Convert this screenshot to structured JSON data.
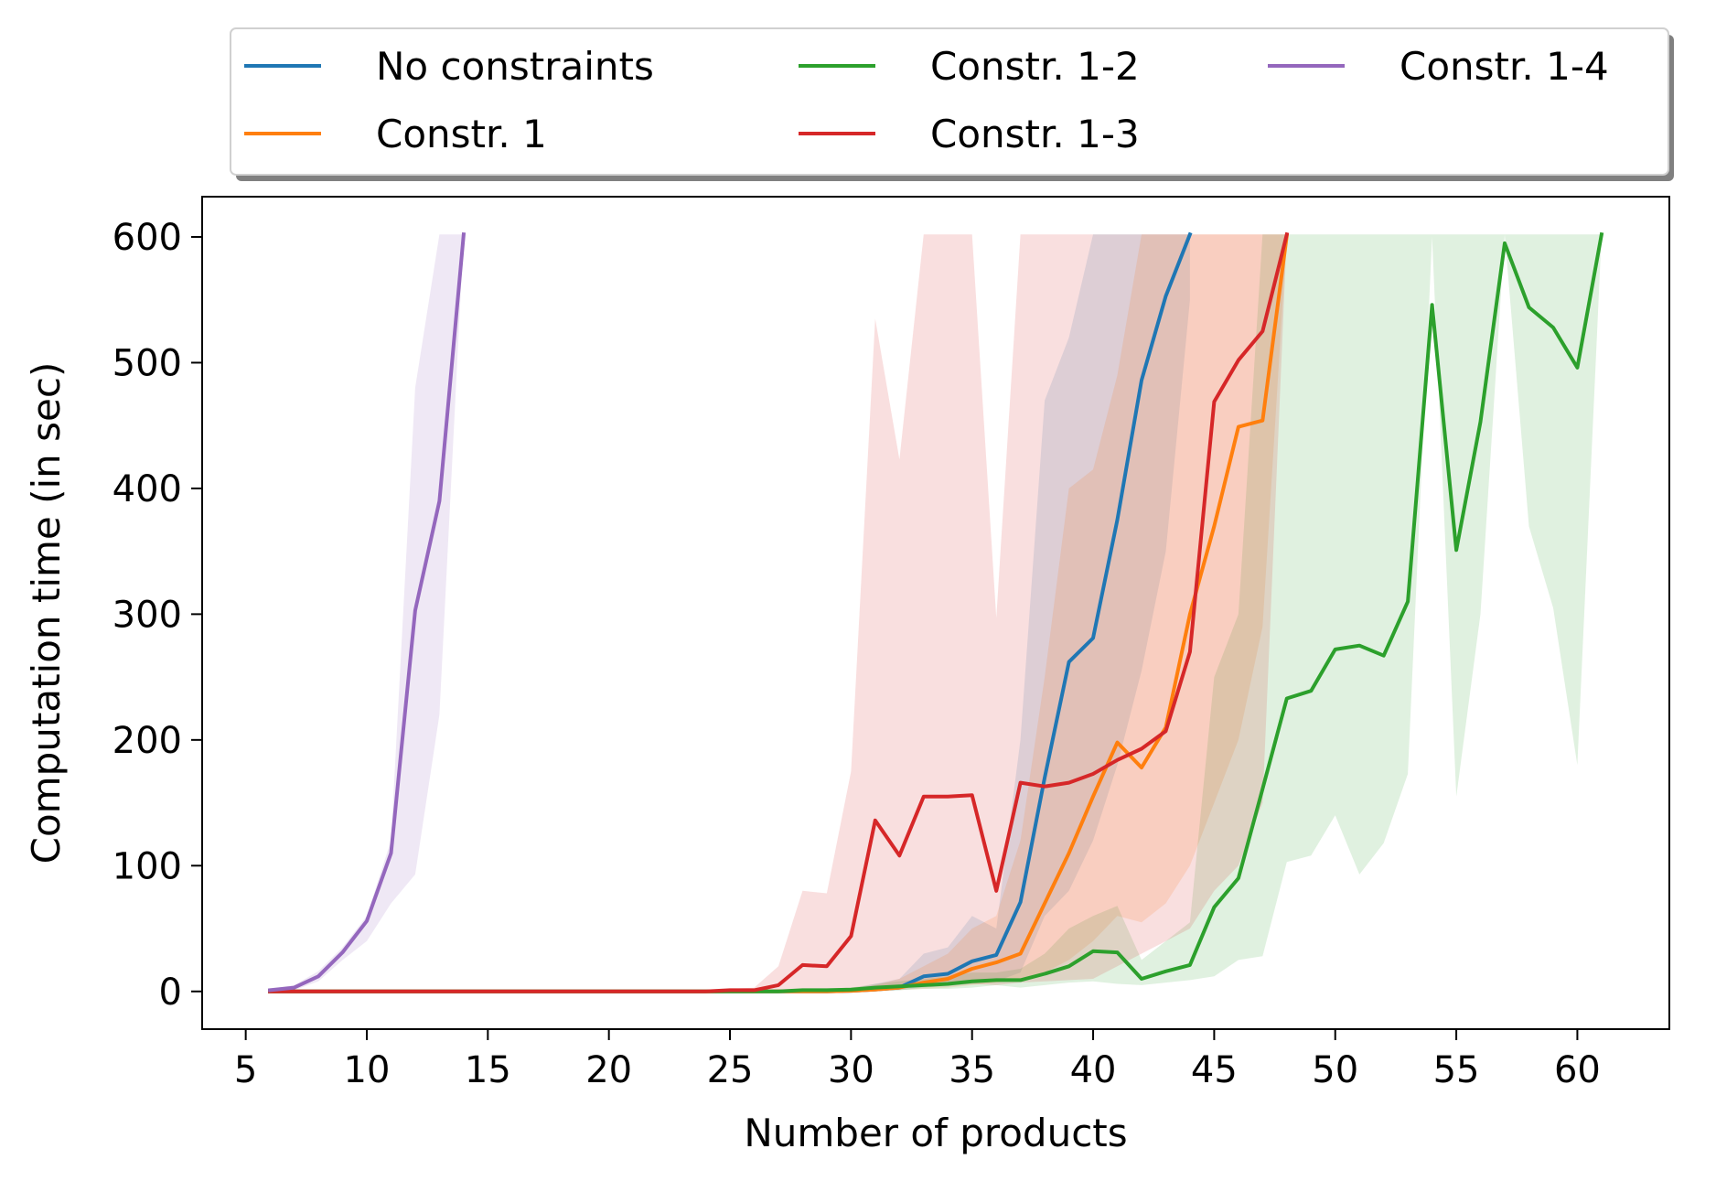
{
  "chart_data": {
    "type": "line",
    "title": "",
    "xlabel": "Number of products",
    "ylabel": "Computation time (in sec)",
    "xlim": [
      3.2,
      63.8
    ],
    "ylim": [
      -30,
      632
    ],
    "xticks": [
      5,
      10,
      15,
      20,
      25,
      30,
      35,
      40,
      45,
      50,
      55,
      60
    ],
    "yticks": [
      0,
      100,
      200,
      300,
      400,
      500,
      600
    ],
    "legend_position": "top-center",
    "legend_columns": 3,
    "series": [
      {
        "name": "No constraints",
        "color": "#1f77b4",
        "x": [
          6,
          7,
          8,
          9,
          10,
          11,
          12,
          13,
          14,
          15,
          16,
          17,
          18,
          19,
          20,
          21,
          22,
          23,
          24,
          25,
          26,
          27,
          28,
          29,
          30,
          31,
          32,
          33,
          34,
          35,
          36,
          37,
          38,
          39,
          40,
          41,
          42,
          43,
          44
        ],
        "y": [
          0,
          0,
          0,
          0,
          0,
          0,
          0,
          0,
          0,
          0,
          0,
          0,
          0,
          0,
          0,
          0,
          0,
          0,
          0,
          0,
          0,
          0,
          0,
          0,
          0.5,
          1.5,
          3,
          12,
          14,
          24,
          29,
          71,
          170,
          262,
          281,
          375,
          486,
          553,
          602
        ],
        "lower": [
          0,
          0,
          0,
          0,
          0,
          0,
          0,
          0,
          0,
          0,
          0,
          0,
          0,
          0,
          0,
          0,
          0,
          0,
          0,
          0,
          0,
          0,
          0,
          0,
          0,
          0.5,
          1,
          3,
          4,
          6,
          8,
          15,
          60,
          80,
          120,
          180,
          255,
          350,
          550
        ],
        "upper": [
          0,
          0,
          0,
          0,
          0,
          0,
          0,
          0,
          0,
          0,
          0,
          0,
          0,
          0,
          0,
          0,
          0,
          0,
          0,
          0,
          0,
          0,
          0,
          0,
          2,
          6,
          10,
          30,
          35,
          60,
          50,
          200,
          470,
          520,
          602,
          602,
          602,
          602,
          602
        ]
      },
      {
        "name": "Constr. 1",
        "color": "#ff7f0e",
        "x": [
          6,
          7,
          8,
          9,
          10,
          11,
          12,
          13,
          14,
          15,
          16,
          17,
          18,
          19,
          20,
          21,
          22,
          23,
          24,
          25,
          26,
          27,
          28,
          29,
          30,
          31,
          32,
          33,
          34,
          35,
          36,
          37,
          38,
          39,
          40,
          41,
          42,
          43,
          44,
          45,
          46,
          47,
          48
        ],
        "y": [
          0,
          0,
          0,
          0,
          0,
          0,
          0,
          0,
          0,
          0,
          0,
          0,
          0,
          0,
          0,
          0,
          0,
          0,
          0,
          0,
          0,
          0,
          0,
          0,
          0.5,
          1.5,
          3,
          7,
          10,
          18,
          23,
          30,
          70,
          110,
          155,
          198,
          178,
          210,
          300,
          370,
          449,
          454,
          601
        ],
        "lower": [
          0,
          0,
          0,
          0,
          0,
          0,
          0,
          0,
          0,
          0,
          0,
          0,
          0,
          0,
          0,
          0,
          0,
          0,
          0,
          0,
          0,
          0,
          0,
          0,
          0,
          0.5,
          1,
          2,
          3,
          5,
          7,
          9,
          15,
          25,
          40,
          60,
          55,
          70,
          100,
          150,
          200,
          290,
          602
        ],
        "upper": [
          0,
          0,
          0,
          0,
          0,
          0,
          0,
          0,
          0,
          0,
          0,
          0,
          0,
          0,
          0,
          0,
          0,
          0,
          0,
          0,
          0,
          0,
          0,
          0,
          2,
          5,
          10,
          20,
          30,
          50,
          60,
          120,
          250,
          400,
          415,
          490,
          602,
          602,
          602,
          602,
          602,
          602,
          602
        ]
      },
      {
        "name": "Constr. 1-2",
        "color": "#2ca02c",
        "x": [
          6,
          7,
          8,
          9,
          10,
          11,
          12,
          13,
          14,
          15,
          16,
          17,
          18,
          19,
          20,
          21,
          22,
          23,
          24,
          25,
          26,
          27,
          28,
          29,
          30,
          31,
          32,
          33,
          34,
          35,
          36,
          37,
          38,
          39,
          40,
          41,
          42,
          43,
          44,
          45,
          46,
          47,
          48,
          49,
          50,
          51,
          52,
          53,
          54,
          55,
          56,
          57,
          58,
          59,
          60,
          61
        ],
        "y": [
          0,
          0,
          0,
          0,
          0,
          0,
          0,
          0,
          0,
          0,
          0,
          0,
          0,
          0,
          0,
          0,
          0,
          0,
          0,
          0,
          0,
          0,
          1,
          1,
          1.5,
          3,
          4,
          5,
          6,
          8,
          9,
          9,
          14,
          20,
          32,
          31,
          10,
          16,
          21,
          67,
          90,
          161,
          233,
          239,
          272,
          275,
          267,
          310,
          546,
          351,
          453,
          595,
          544,
          528,
          496,
          602
        ],
        "lower": [
          0,
          0,
          0,
          0,
          0,
          0,
          0,
          0,
          0,
          0,
          0,
          0,
          0,
          0,
          0,
          0,
          0,
          0,
          0,
          0,
          0,
          0,
          0,
          0,
          0,
          0.5,
          1,
          2,
          2,
          3,
          5,
          3,
          5,
          7,
          8,
          6,
          5,
          7,
          9,
          12,
          25,
          28,
          103,
          108,
          140,
          93,
          118,
          173,
          600,
          155,
          300,
          602,
          370,
          305,
          180,
          602
        ],
        "upper": [
          0,
          0,
          0,
          0,
          0,
          0,
          0,
          0,
          0,
          0,
          0,
          0,
          0,
          0,
          0,
          0,
          0,
          0,
          0,
          0,
          0,
          0,
          2,
          2,
          3,
          6,
          8,
          10,
          12,
          15,
          15,
          18,
          30,
          50,
          60,
          68,
          25,
          40,
          55,
          250,
          300,
          602,
          602,
          602,
          602,
          602,
          602,
          602,
          602,
          602,
          602,
          602,
          602,
          602,
          602,
          602
        ]
      },
      {
        "name": "Constr. 1-3",
        "color": "#d62728",
        "x": [
          6,
          7,
          8,
          9,
          10,
          11,
          12,
          13,
          14,
          15,
          16,
          17,
          18,
          19,
          20,
          21,
          22,
          23,
          24,
          25,
          26,
          27,
          28,
          29,
          30,
          31,
          32,
          33,
          34,
          35,
          36,
          37,
          38,
          39,
          40,
          41,
          42,
          43,
          44,
          45,
          46,
          47,
          48
        ],
        "y": [
          0,
          0,
          0,
          0,
          0,
          0,
          0,
          0,
          0,
          0,
          0,
          0,
          0,
          0,
          0,
          0,
          0,
          0,
          0,
          1,
          1,
          5,
          21,
          20,
          44,
          136,
          108,
          155,
          155,
          156,
          80,
          166,
          163,
          166,
          173,
          184,
          193,
          207,
          270,
          469,
          502,
          525,
          602
        ],
        "lower": [
          0,
          0,
          0,
          0,
          0,
          0,
          0,
          0,
          0,
          0,
          0,
          0,
          0,
          0,
          0,
          0,
          0,
          0,
          0,
          0,
          0,
          0,
          1,
          1,
          1,
          2,
          3,
          5,
          5,
          6,
          5,
          7,
          8,
          9,
          10,
          20,
          30,
          40,
          50,
          80,
          100,
          150,
          602
        ],
        "upper": [
          0,
          0,
          0,
          0,
          0,
          0,
          0,
          0,
          0,
          0,
          0,
          0,
          0,
          0,
          0,
          0,
          0,
          0,
          1,
          2,
          3,
          20,
          80,
          78,
          175,
          535,
          423,
          602,
          602,
          602,
          297,
          602,
          602,
          602,
          602,
          602,
          602,
          602,
          602,
          602,
          602,
          602,
          602
        ]
      },
      {
        "name": "Constr. 1-4",
        "color": "#9467bd",
        "x": [
          6,
          7,
          8,
          9,
          10,
          11,
          12,
          13,
          14
        ],
        "y": [
          1,
          3,
          12,
          31,
          56,
          110,
          303,
          390,
          602
        ],
        "lower": [
          0,
          1,
          8,
          25,
          40,
          70,
          93,
          220,
          602
        ],
        "upper": [
          2,
          5,
          16,
          35,
          60,
          120,
          480,
          602,
          602
        ]
      }
    ]
  }
}
